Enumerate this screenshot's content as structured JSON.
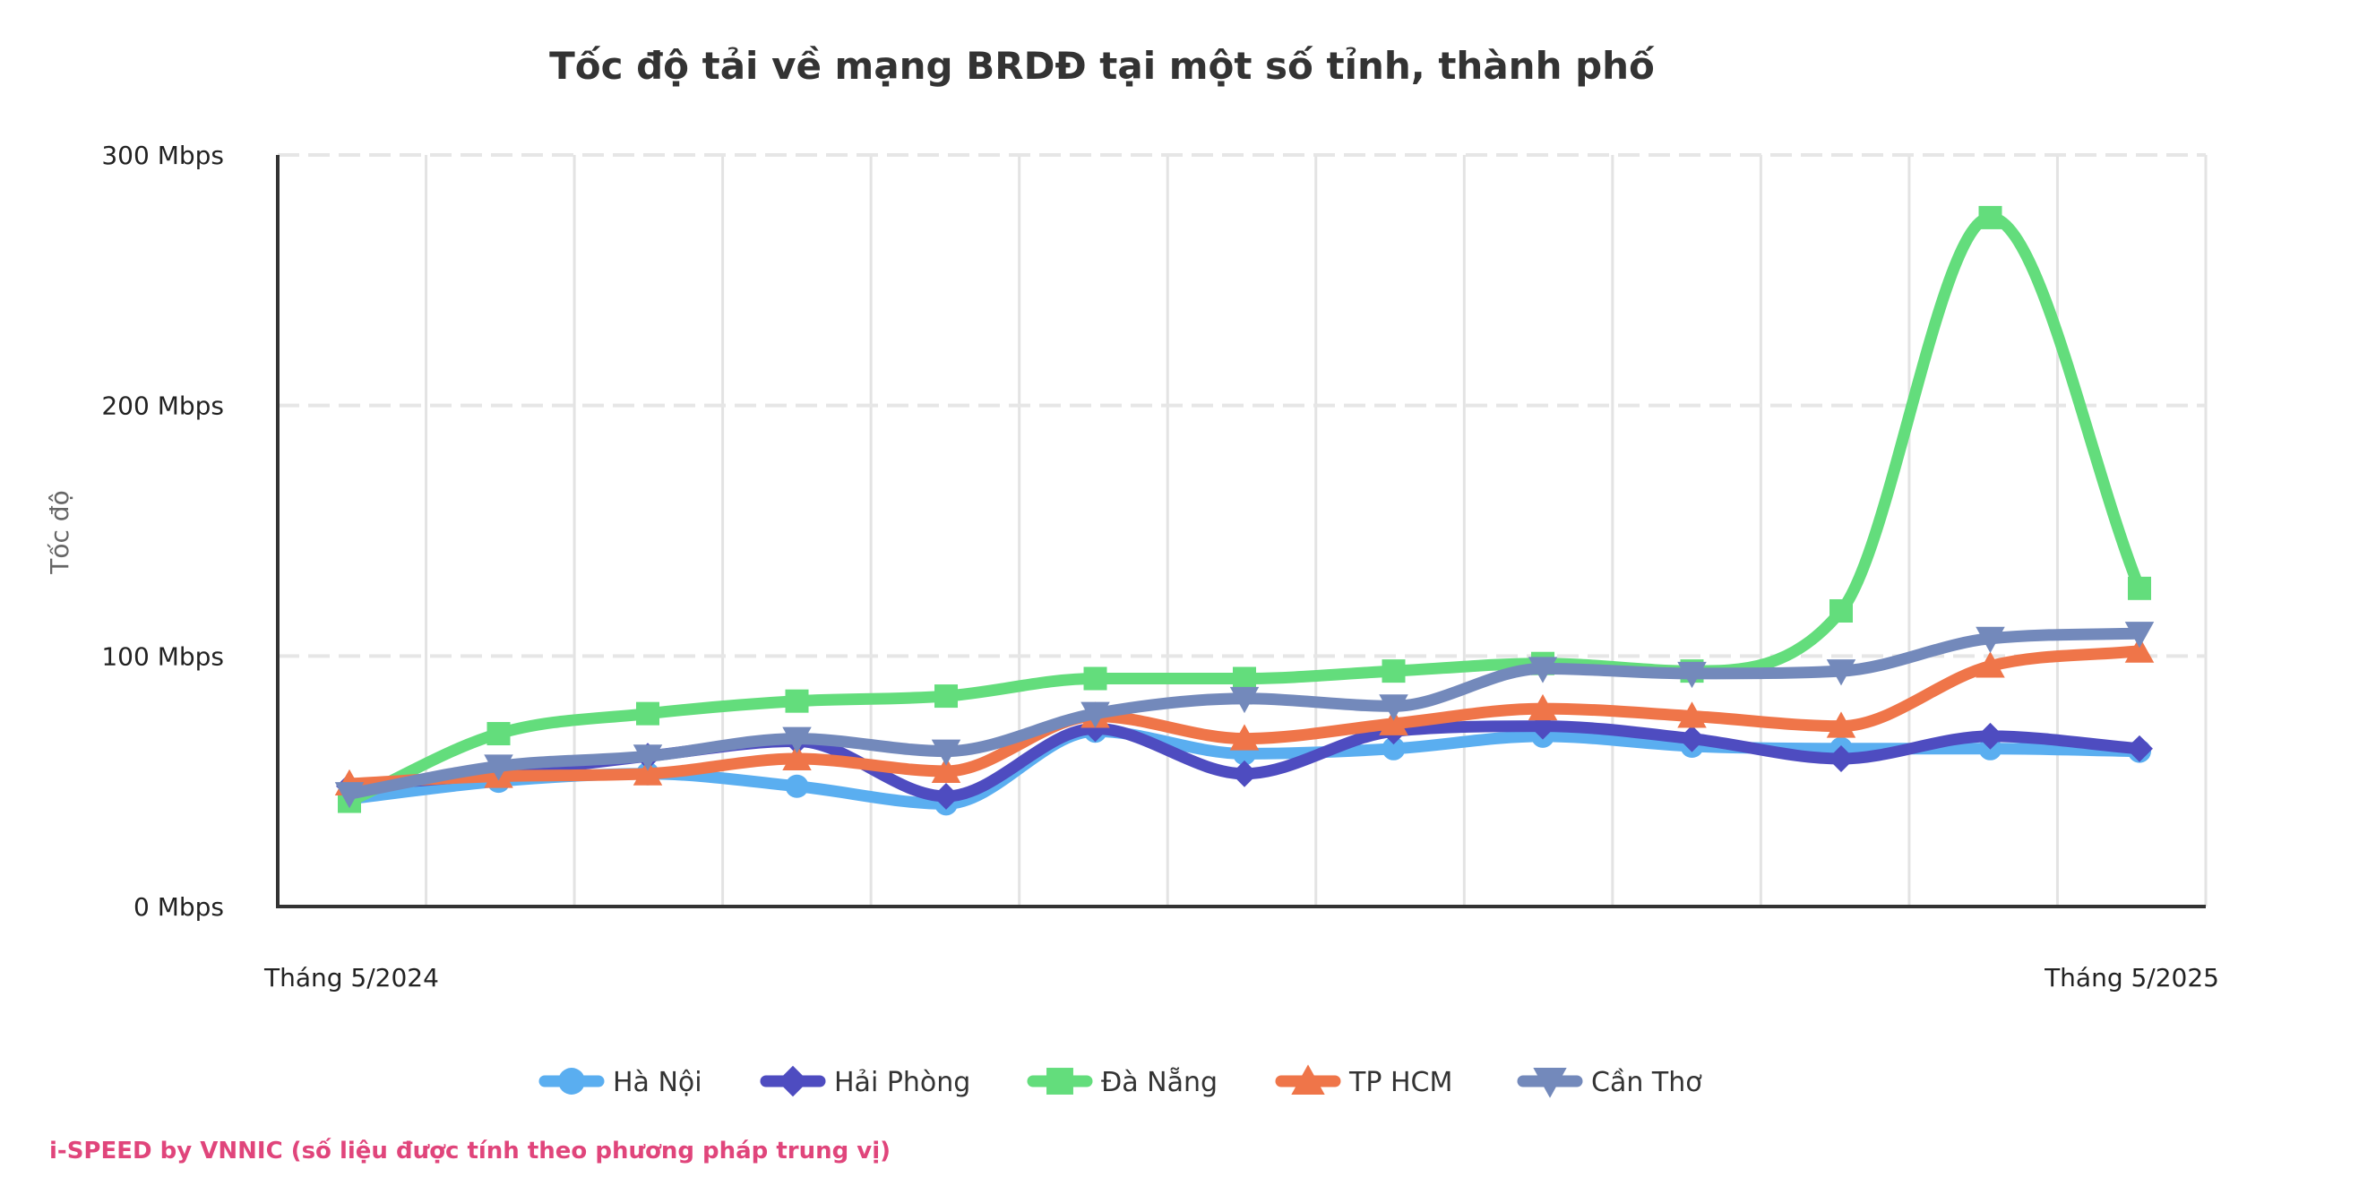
{
  "chart_data": {
    "type": "line",
    "title": "Tốc độ tải về mạng BRDĐ tại một số tỉnh, thành phố",
    "ylabel": "Tốc độ",
    "xlabel": "",
    "x_tick_labels": [
      "Tháng 5/2024",
      "Tháng 5/2025"
    ],
    "y_ticks": [
      {
        "value": 0,
        "label": "0 Mbps"
      },
      {
        "value": 100,
        "label": "100 Mbps"
      },
      {
        "value": 200,
        "label": "200 Mbps"
      },
      {
        "value": 300,
        "label": "300 Mbps"
      }
    ],
    "ylim": [
      0,
      300
    ],
    "grid": true,
    "legend_position": "bottom",
    "point_count": 13,
    "series": [
      {
        "name": "Hà Nội",
        "color": "#5aaef0",
        "marker": "circle",
        "values": [
          43,
          50,
          53,
          48,
          41,
          70,
          61,
          63,
          68,
          64,
          63,
          63,
          62
        ]
      },
      {
        "name": "Hải Phòng",
        "color": "#4e4cc0",
        "marker": "diamond",
        "values": [
          48,
          53,
          60,
          66,
          44,
          71,
          53,
          70,
          72,
          67,
          59,
          68,
          63
        ]
      },
      {
        "name": "Đà Nẵng",
        "color": "#63dd7c",
        "marker": "square",
        "values": [
          42,
          69,
          77,
          82,
          84,
          91,
          91,
          94,
          97,
          94,
          118,
          275,
          127
        ]
      },
      {
        "name": "TP HCM",
        "color": "#ef7549",
        "marker": "triangle-up",
        "values": [
          49,
          52,
          53,
          59,
          54,
          76,
          67,
          73,
          79,
          76,
          72,
          96,
          102
        ]
      },
      {
        "name": "Cần Thơ",
        "color": "#7389bb",
        "marker": "triangle-down",
        "values": [
          45,
          56,
          60,
          67,
          62,
          77,
          83,
          80,
          95,
          93,
          94,
          107,
          109
        ]
      }
    ],
    "footer": "i-SPEED by VNNIC (số liệu được tính theo phương pháp trung vị)"
  }
}
